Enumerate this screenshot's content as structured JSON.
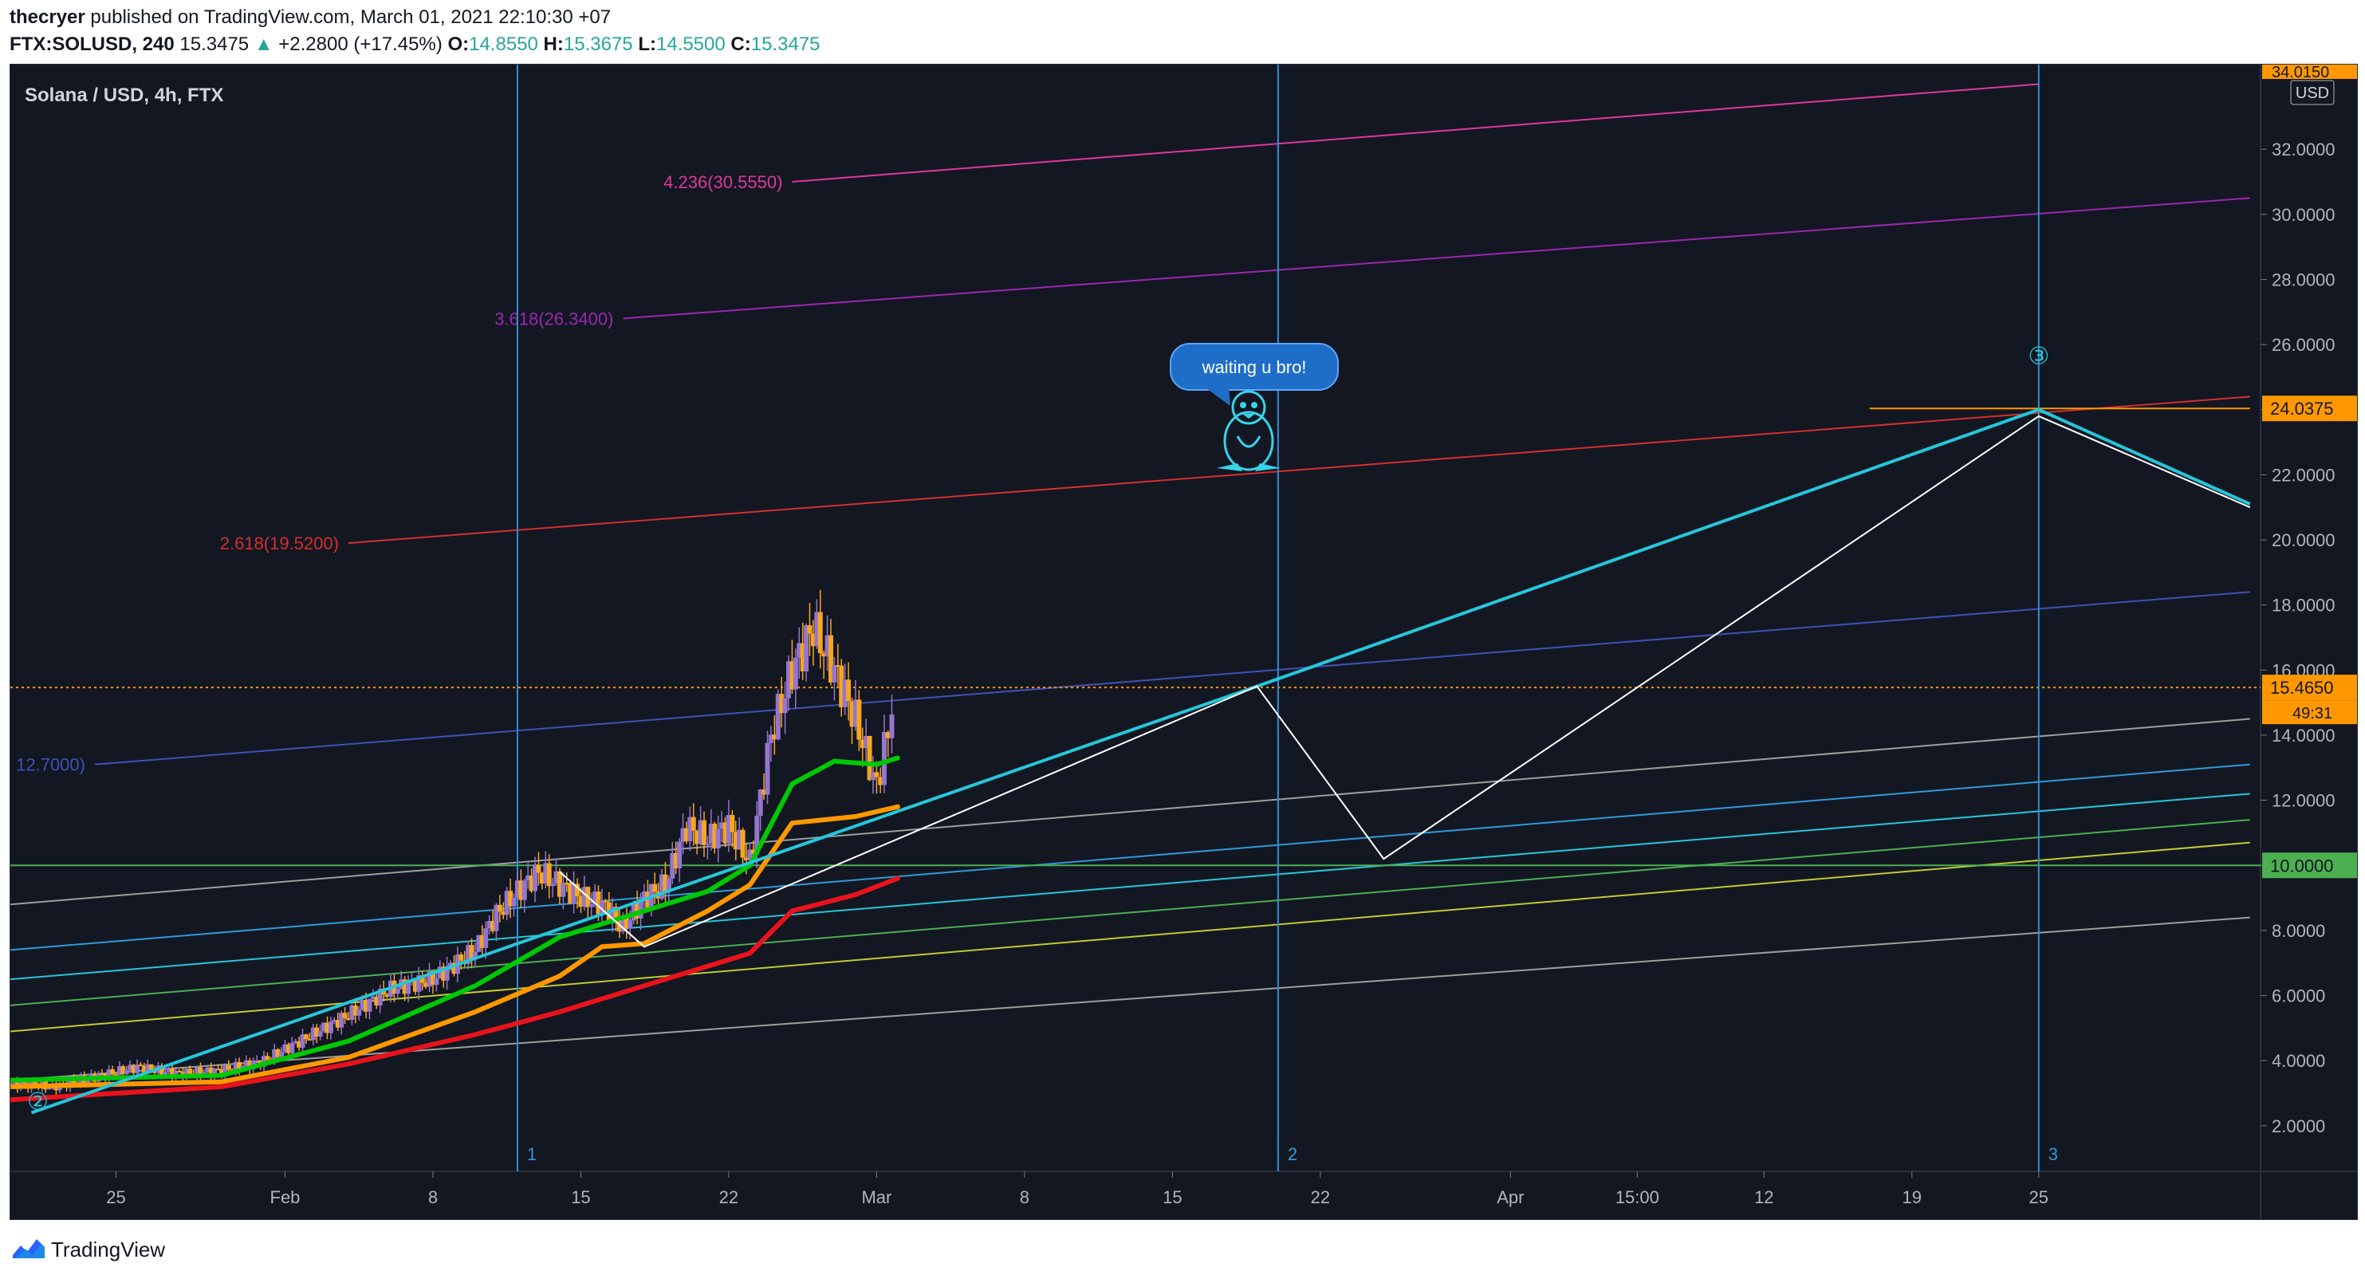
{
  "header": {
    "author": "thecryer",
    "published_text": "published on TradingView.com, March 01, 2021 22:10:30 +07",
    "symbol": "FTX:SOLUSD, 240",
    "last": "15.3475",
    "change_arrow": "▲",
    "change": "+2.2800 (+17.45%)",
    "o_label": "O:",
    "o": "14.8550",
    "h_label": "H:",
    "h": "15.3675",
    "l_label": "L:",
    "l": "14.5500",
    "c_label": "C:",
    "c": "15.3475"
  },
  "chart": {
    "title": "Solana / USD, 4h, FTX",
    "currency": "USD",
    "callout": "waiting u bro!",
    "mascot_icon": "penguin-icon",
    "current_price_label": "15.4650",
    "countdown": "49:31",
    "hline_24_label": "24.0375",
    "hline_10_label": "10.0000",
    "top_price_label": "34.0150"
  },
  "chart_data": {
    "type": "line",
    "title": "Solana / USD, 4h, FTX",
    "y_axis": {
      "ylim": [
        1.0,
        34.0
      ],
      "ticks": [
        "2.0000",
        "4.0000",
        "6.0000",
        "8.0000",
        "10.0000",
        "12.0000",
        "14.0000",
        "16.0000",
        "18.0000",
        "20.0000",
        "22.0000",
        "24.0000",
        "26.0000",
        "28.0000",
        "30.0000",
        "32.0000"
      ],
      "tick_values": [
        2,
        4,
        6,
        8,
        10,
        12,
        14,
        16,
        18,
        20,
        22,
        24,
        26,
        28,
        30,
        32
      ]
    },
    "x_axis": {
      "ticks": [
        "25",
        "Feb",
        "8",
        "15",
        "22",
        "Mar",
        "8",
        "15",
        "22",
        "Apr",
        "15:00",
        "12",
        "19",
        "25"
      ],
      "tick_index": [
        5,
        13,
        20,
        27,
        34,
        41,
        48,
        55,
        62,
        71,
        77,
        83,
        90,
        96
      ]
    },
    "price_closes": [
      {
        "d": 0,
        "c": 3.3
      },
      {
        "d": 2,
        "c": 3.2
      },
      {
        "d": 4,
        "c": 3.5
      },
      {
        "d": 6,
        "c": 3.8
      },
      {
        "d": 8,
        "c": 3.6
      },
      {
        "d": 10,
        "c": 3.7
      },
      {
        "d": 12,
        "c": 4.0
      },
      {
        "d": 14,
        "c": 4.7
      },
      {
        "d": 16,
        "c": 5.4
      },
      {
        "d": 18,
        "c": 6.2
      },
      {
        "d": 20,
        "c": 6.5
      },
      {
        "d": 22,
        "c": 7.4
      },
      {
        "d": 23,
        "c": 8.5
      },
      {
        "d": 24,
        "c": 9.2
      },
      {
        "d": 25,
        "c": 9.8
      },
      {
        "d": 26,
        "c": 9.4
      },
      {
        "d": 27,
        "c": 9.0
      },
      {
        "d": 28,
        "c": 8.8
      },
      {
        "d": 29,
        "c": 8.1
      },
      {
        "d": 30,
        "c": 9.0
      },
      {
        "d": 31,
        "c": 9.4
      },
      {
        "d": 32,
        "c": 11.2
      },
      {
        "d": 33,
        "c": 10.8
      },
      {
        "d": 34,
        "c": 11.2
      },
      {
        "d": 35,
        "c": 10.1
      },
      {
        "d": 36,
        "c": 14.0
      },
      {
        "d": 37,
        "c": 16.0
      },
      {
        "d": 38,
        "c": 17.3
      },
      {
        "d": 39,
        "c": 16.0
      },
      {
        "d": 40,
        "c": 14.5
      },
      {
        "d": 41,
        "c": 12.4
      },
      {
        "d": 41.9,
        "c": 15.35
      }
    ],
    "series": [
      {
        "name": "",
        "color": "#00c805",
        "points": [
          [
            0,
            3.4
          ],
          [
            10,
            3.55
          ],
          [
            16,
            4.6
          ],
          [
            22,
            6.3
          ],
          [
            26,
            7.8
          ],
          [
            30,
            8.6
          ],
          [
            33,
            9.2
          ],
          [
            35,
            10.0
          ],
          [
            37,
            12.5
          ],
          [
            39,
            13.2
          ],
          [
            41,
            13.1
          ],
          [
            42,
            13.3
          ]
        ]
      },
      {
        "name": "",
        "color": "#ff9800",
        "points": [
          [
            0,
            3.2
          ],
          [
            10,
            3.35
          ],
          [
            16,
            4.1
          ],
          [
            22,
            5.5
          ],
          [
            26,
            6.6
          ],
          [
            28,
            7.5
          ],
          [
            30,
            7.6
          ],
          [
            33,
            8.6
          ],
          [
            35,
            9.4
          ],
          [
            37,
            11.3
          ],
          [
            40,
            11.5
          ],
          [
            42,
            11.8
          ]
        ]
      },
      {
        "name": "",
        "color": "#e8131b",
        "points": [
          [
            0,
            2.8
          ],
          [
            10,
            3.2
          ],
          [
            16,
            3.9
          ],
          [
            22,
            4.8
          ],
          [
            26,
            5.5
          ],
          [
            30,
            6.3
          ],
          [
            33,
            6.9
          ],
          [
            35,
            7.3
          ],
          [
            37,
            8.6
          ],
          [
            40,
            9.1
          ],
          [
            42,
            9.6
          ]
        ]
      }
    ],
    "projection_path": [
      [
        1,
        2.4
      ],
      [
        59,
        15.5
      ],
      [
        96,
        24.0
      ],
      [
        106,
        21.1
      ]
    ],
    "projection_alt_path": [
      [
        26,
        9.8
      ],
      [
        30,
        7.5
      ],
      [
        59,
        15.5
      ],
      [
        65,
        10.2
      ],
      [
        96,
        23.8
      ],
      [
        106,
        21.0
      ]
    ],
    "fib_levels": [
      {
        "label": "4.236(30.5550)",
        "value": 30.555,
        "color": "#e0379b",
        "x0": 37,
        "y0": 31.0,
        "x1": 96,
        "y1": 34.0
      },
      {
        "label": "3.618(26.3400)",
        "value": 26.34,
        "color": "#9c27b0",
        "x0": 29,
        "y0": 26.8,
        "x1": 106,
        "y1": 30.5
      },
      {
        "label": "2.618(19.5200)",
        "value": 19.52,
        "color": "#d32f2f",
        "x0": 16,
        "y0": 19.9,
        "x1": 106,
        "y1": 24.4
      },
      {
        "label": "12.7000)",
        "value": 12.7,
        "color": "#3f51b5",
        "x0": 4,
        "y0": 13.1,
        "x1": 106,
        "y1": 18.4
      }
    ],
    "channel_lines": [
      {
        "color": "#9e9e9e",
        "x0": 0,
        "y0": 8.8,
        "x1": 106,
        "y1": 14.5
      },
      {
        "color": "#2f9ad8",
        "x0": 0,
        "y0": 7.4,
        "x1": 106,
        "y1": 13.1
      },
      {
        "color": "#26c6da",
        "x0": 0,
        "y0": 6.5,
        "x1": 106,
        "y1": 12.2
      },
      {
        "color": "#4caf50",
        "x0": 0,
        "y0": 5.7,
        "x1": 106,
        "y1": 11.4
      },
      {
        "color": "#c0ca33",
        "x0": 0,
        "y0": 4.9,
        "x1": 106,
        "y1": 10.7
      },
      {
        "color": "#9e9e9e",
        "x0": 0,
        "y0": 3.4,
        "x1": 106,
        "y1": 8.4
      }
    ],
    "horizontal_lines": [
      {
        "value": 15.465,
        "color": "#ff9800",
        "style": "dotted"
      },
      {
        "value": 10.0,
        "color": "#4caf50",
        "style": "solid"
      },
      {
        "value": 24.0375,
        "color": "#ff9800",
        "style": "short",
        "x0": 88,
        "x1": 106
      }
    ],
    "vertical_markers": [
      {
        "label": "1",
        "x": 24
      },
      {
        "label": "2",
        "x": 60
      },
      {
        "label": "3",
        "x": 96
      }
    ],
    "wave_labels": [
      {
        "label": "②",
        "x": 1.3,
        "y": 2.5
      },
      {
        "label": "③",
        "x": 96,
        "y": 25.4
      }
    ],
    "grid": false
  }
}
